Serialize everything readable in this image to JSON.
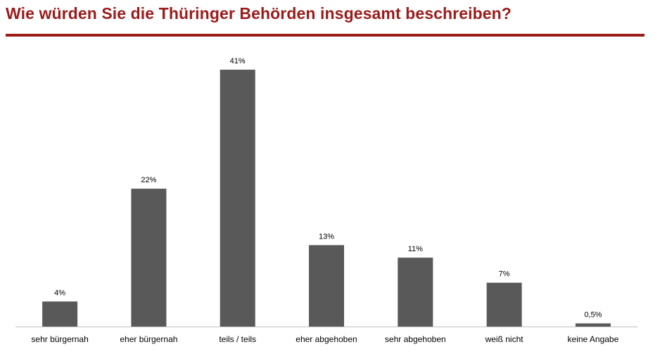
{
  "header": {
    "title": "Wie würden Sie die Thüringer Behörden insgesamt beschreiben?"
  },
  "colors": {
    "accent": "#9b1b1b",
    "bar": "#595959",
    "axis": "#bfbfbf"
  },
  "chart_data": {
    "type": "bar",
    "title": "Wie würden Sie die Thüringer Behörden insgesamt beschreiben?",
    "categories": [
      "sehr bürgernah",
      "eher bürgernah",
      "teils / teils",
      "eher abgehoben",
      "sehr abgehoben",
      "weiß nicht",
      "keine Angabe"
    ],
    "values": [
      4,
      22,
      41,
      13,
      11,
      7,
      0.5
    ],
    "data_labels": [
      "4%",
      "22%",
      "41%",
      "13%",
      "11%",
      "7%",
      "0,5%"
    ],
    "unit": "%",
    "xlabel": "",
    "ylabel": "",
    "ylim": [
      0,
      41
    ],
    "grid": false,
    "legend": "none"
  }
}
